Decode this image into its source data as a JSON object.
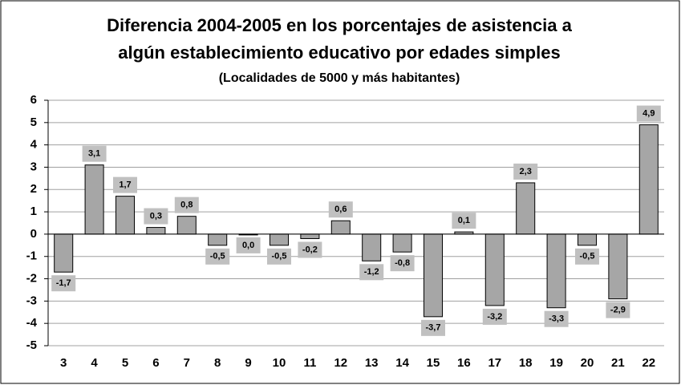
{
  "chart_data": {
    "type": "bar",
    "title": [
      "Diferencia 2004-2005 en los porcentajes de asistencia a",
      "algún establecimiento educativo por edades simples"
    ],
    "subtitle": "(Localidades de 5000 y más habitantes)",
    "categories": [
      "3",
      "4",
      "5",
      "6",
      "7",
      "8",
      "9",
      "10",
      "11",
      "12",
      "13",
      "14",
      "15",
      "16",
      "17",
      "18",
      "19",
      "20",
      "21",
      "22"
    ],
    "values": [
      -1.7,
      3.1,
      1.7,
      0.3,
      0.8,
      -0.5,
      0.0,
      -0.5,
      -0.2,
      0.6,
      -1.2,
      -0.8,
      -3.7,
      0.1,
      -3.2,
      2.3,
      -3.3,
      -0.5,
      -2.9,
      4.9
    ],
    "value_labels": [
      "-1,7",
      "3,1",
      "1,7",
      "0,3",
      "0,8",
      "-0,5",
      "0,0",
      "-0,5",
      "-0,2",
      "0,6",
      "-1,2",
      "-0,8",
      "-3,7",
      "0,1",
      "-3,2",
      "2,3",
      "-3,3",
      "-0,5",
      "-2,9",
      "4,9"
    ],
    "color": "#a6a6a6",
    "ylim": [
      -5,
      6
    ],
    "yticks": [
      -5,
      -4,
      -3,
      -2,
      -1,
      0,
      1,
      2,
      3,
      4,
      5,
      6
    ],
    "grid": true
  }
}
